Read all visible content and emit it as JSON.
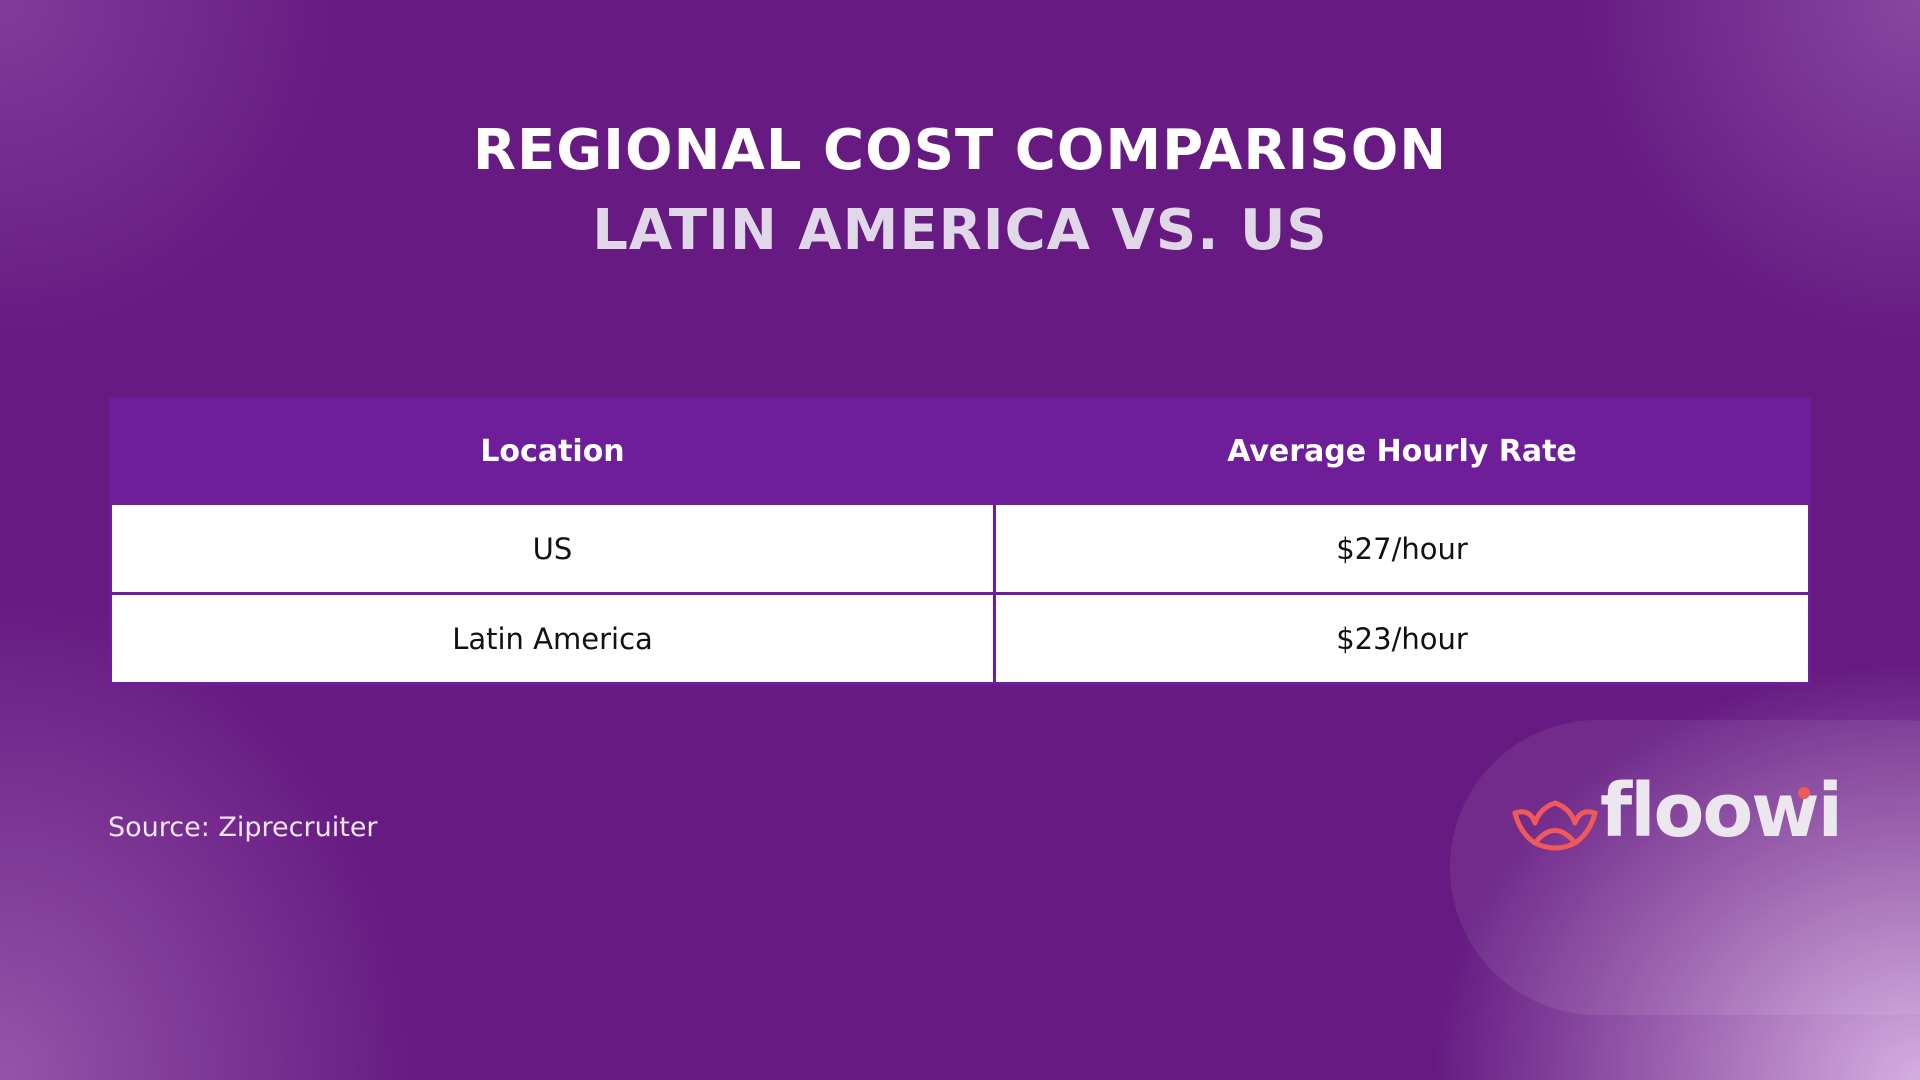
{
  "header": {
    "title": "REGIONAL COST COMPARISON",
    "subtitle": "LATIN AMERICA VS. US"
  },
  "table": {
    "headers": [
      "Location",
      "Average Hourly Rate"
    ],
    "rows": [
      [
        "US",
        "$27/hour"
      ],
      [
        "Latin America",
        "$23/hour"
      ]
    ]
  },
  "source": "Source: Ziprecruiter",
  "logo": "floowi"
}
